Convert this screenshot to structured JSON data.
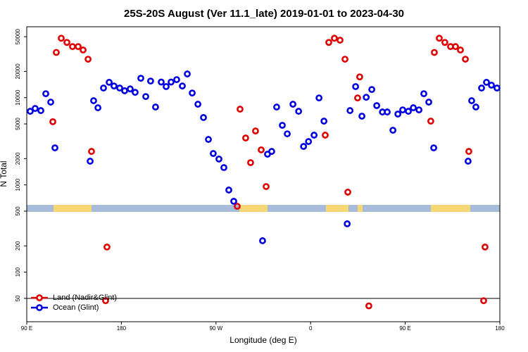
{
  "chart_data": {
    "type": "scatter",
    "title": "25S-20S August (Ver 11.1_late)   2019-01-01 to 2023-04-30",
    "xlabel": "Longitude (deg E)",
    "ylabel": "N Total",
    "xlim": [
      90,
      540
    ],
    "xticks": [
      {
        "value": 90,
        "label": "90 E"
      },
      180,
      {
        "value": 270,
        "label": "90 W"
      },
      {
        "value": 360,
        "label": "0"
      },
      {
        "value": 450,
        "label": "90 E"
      },
      {
        "value": 540,
        "label": "180"
      }
    ],
    "ylim": [
      27,
      65000
    ],
    "yticks": [
      50,
      100,
      200,
      500,
      1000,
      2000,
      5000,
      10000,
      20000,
      50000
    ],
    "log_y": true,
    "hline": 50,
    "legend": "lower left",
    "series": [
      {
        "name": "Land (Nadir&Glint)",
        "color": "#e00000",
        "x": [
          114.8,
          118.1,
          122.8,
          128.2,
          133.5,
          138.9,
          143.6,
          148.3,
          151.6,
          166.3,
          165,
          292.9,
          298.2,
          302.9,
          307.6,
          313,
          317.7,
          290.2,
          373.9,
          377.3,
          382.6,
          388,
          392.7,
          395.4,
          404.7,
          406.7,
          415.4,
          474.3,
          477.7,
          482.4,
          487.7,
          493.1,
          497.8,
          502.5,
          507.2,
          510.5,
          525.9,
          524.6
        ],
        "values": [
          5300,
          33000,
          48000,
          43000,
          38500,
          38500,
          35200,
          27600,
          2420,
          194,
          47,
          7380,
          3450,
          1800,
          4150,
          2520,
          957,
          569,
          3720,
          43000,
          48000,
          45600,
          27600,
          826,
          9930,
          17300,
          41,
          5380,
          33000,
          48000,
          43000,
          38500,
          38500,
          35200,
          27600,
          2420,
          194,
          47
        ]
      },
      {
        "name": "Ocean (Glint)",
        "color": "#0000e0",
        "x": [
          93.3,
          98,
          103.4,
          108.1,
          112.8,
          116.8,
          150.3,
          153.6,
          157.7,
          163,
          168.4,
          173,
          178.4,
          183.1,
          188.4,
          193.1,
          198.5,
          203.2,
          207.8,
          212.5,
          217.9,
          222.6,
          227.3,
          232.6,
          238,
          242.7,
          247.4,
          252.8,
          258.1,
          262.8,
          267.4,
          272.8,
          277.5,
          282.2,
          286.9,
          314.3,
          319,
          323,
          327.7,
          333.1,
          337.8,
          343.2,
          348.6,
          353.3,
          358,
          363.3,
          368,
          372.7,
          394.8,
          397.5,
          402.8,
          408.8,
          412.9,
          418.2,
          422.9,
          428.3,
          432.9,
          438.3,
          443,
          447.6,
          453,
          457.7,
          463.1,
          467.7,
          472.4,
          477.1,
          509.8,
          513.2,
          517.2,
          522.6,
          527.3,
          532,
          537.3
        ],
        "values": [
          6980,
          7520,
          7110,
          11100,
          8890,
          2660,
          1870,
          9230,
          7660,
          12900,
          15000,
          13600,
          12900,
          12000,
          12600,
          11500,
          16700,
          10300,
          15500,
          7810,
          15100,
          13400,
          15100,
          16100,
          13600,
          18700,
          11300,
          8410,
          5920,
          3320,
          2290,
          1980,
          1580,
          873,
          649,
          229,
          2250,
          2420,
          7810,
          4820,
          3850,
          8410,
          6980,
          2760,
          3140,
          3720,
          9930,
          5380,
          358,
          7110,
          13400,
          6140,
          10100,
          12400,
          8110,
          6850,
          6850,
          4230,
          6490,
          7240,
          6980,
          7660,
          7240,
          11100,
          8890,
          2660,
          1870,
          9230,
          7810,
          12900,
          15000,
          13900,
          12900
        ]
      }
    ]
  }
}
